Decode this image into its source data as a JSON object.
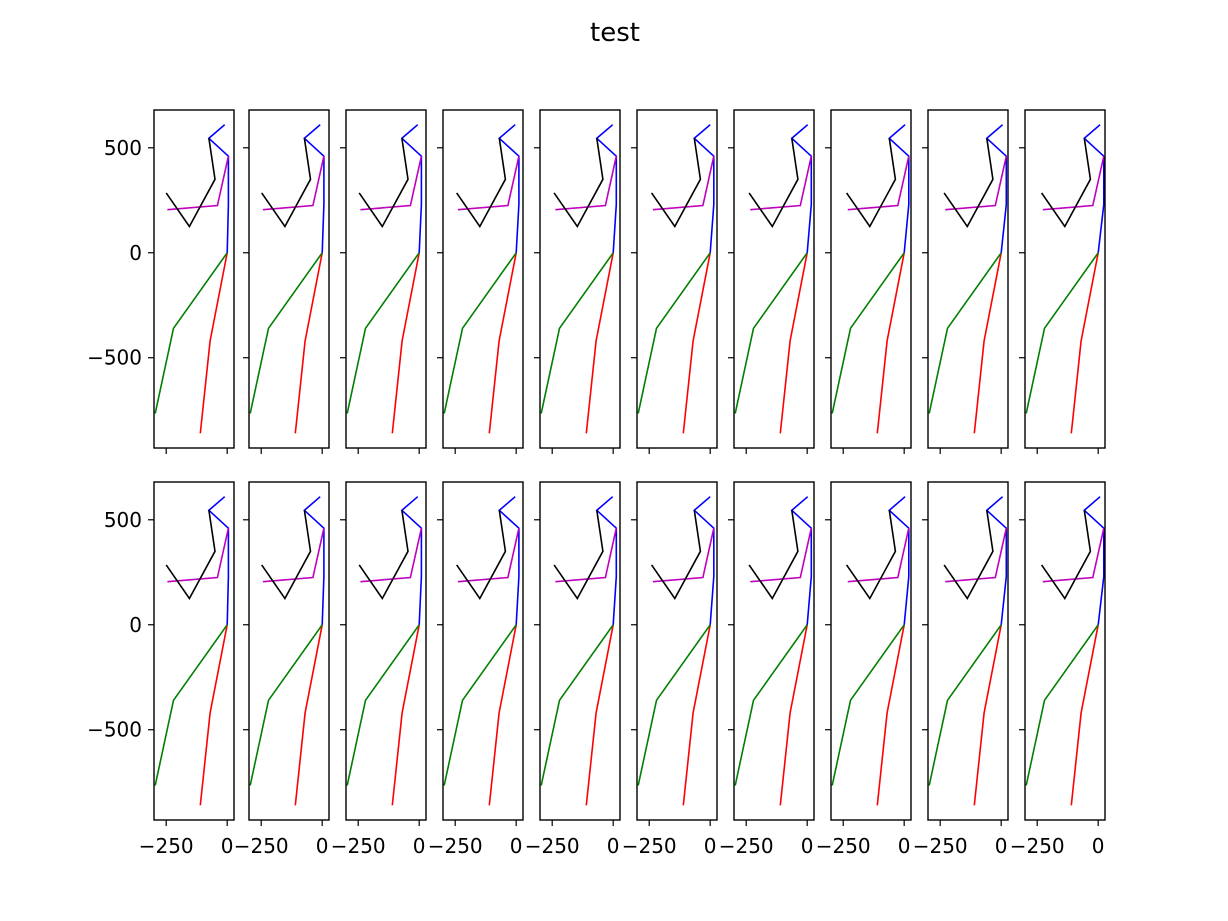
{
  "chart_data": {
    "type": "line",
    "title": "test",
    "rows": 2,
    "cols": 10,
    "xlim": [
      -300,
      28
    ],
    "ylim": [
      -930,
      680
    ],
    "x_ticks": [
      {
        "value": -250,
        "label": "−250"
      },
      {
        "value": 0,
        "label": "0"
      }
    ],
    "y_ticks": [
      {
        "value": 500,
        "label": "500"
      },
      {
        "value": 0,
        "label": "0"
      },
      {
        "value": -500,
        "label": "−500"
      }
    ],
    "grid": false,
    "colors": {
      "red": "#ff0000",
      "green": "#008000",
      "blue": "#0000ff",
      "magenta": "#bf00bf",
      "black": "#000000"
    },
    "panels": [
      {
        "offset": 0
      },
      {
        "offset": 2
      },
      {
        "offset": 4
      },
      {
        "offset": 6
      },
      {
        "offset": 8
      },
      {
        "offset": 10
      },
      {
        "offset": 12
      },
      {
        "offset": 14
      },
      {
        "offset": 16
      },
      {
        "offset": 18
      },
      {
        "offset": 0
      },
      {
        "offset": 2
      },
      {
        "offset": 4
      },
      {
        "offset": 6
      },
      {
        "offset": 8
      },
      {
        "offset": 10
      },
      {
        "offset": 12
      },
      {
        "offset": 14
      },
      {
        "offset": 16
      },
      {
        "offset": 18
      }
    ],
    "skeleton": [
      {
        "name": "red",
        "points": [
          [
            0,
            0
          ],
          [
            -70,
            -420
          ],
          [
            -110,
            -860
          ]
        ]
      },
      {
        "name": "green",
        "points": [
          [
            0,
            0
          ],
          [
            -220,
            -360
          ],
          [
            -295,
            -765
          ]
        ]
      },
      {
        "name": "blue",
        "points": [
          [
            0,
            0
          ],
          [
            5,
            230
          ],
          [
            5,
            460
          ],
          [
            -75,
            545
          ],
          [
            -10,
            610
          ]
        ]
      },
      {
        "name": "magenta",
        "points": [
          [
            -245,
            205
          ],
          [
            -40,
            225
          ],
          [
            5,
            460
          ]
        ]
      },
      {
        "name": "black",
        "points": [
          [
            -75,
            545
          ],
          [
            -50,
            350
          ],
          [
            -155,
            125
          ],
          [
            -250,
            285
          ]
        ]
      }
    ]
  }
}
